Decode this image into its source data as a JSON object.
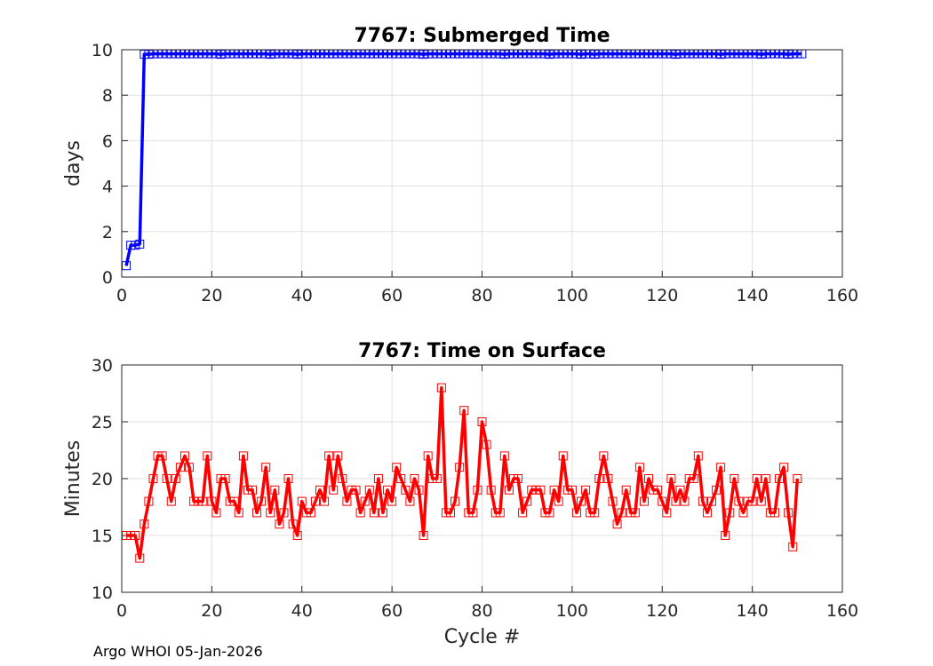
{
  "footer": "Argo WHOI 05-Jan-2026",
  "chart_data": [
    {
      "type": "line",
      "title": "7767: Submerged Time",
      "xlabel": "",
      "ylabel": "days",
      "xlim": [
        0,
        160
      ],
      "ylim": [
        0,
        10
      ],
      "xticks": [
        0,
        20,
        40,
        60,
        80,
        100,
        120,
        140,
        160
      ],
      "yticks": [
        0,
        2,
        4,
        6,
        8,
        10
      ],
      "grid": true,
      "color": "#0000ff",
      "marker": "square",
      "x_start": 1,
      "values": [
        0.5,
        1.4,
        1.4,
        1.45,
        9.8,
        9.8,
        9.82,
        9.82,
        9.82,
        9.82,
        9.82,
        9.82,
        9.82,
        9.82,
        9.82,
        9.82,
        9.82,
        9.82,
        9.82,
        9.82,
        9.82,
        9.8,
        9.82,
        9.82,
        9.82,
        9.82,
        9.82,
        9.82,
        9.82,
        9.82,
        9.82,
        9.82,
        9.8,
        9.82,
        9.82,
        9.82,
        9.82,
        9.82,
        9.8,
        9.82,
        9.82,
        9.82,
        9.82,
        9.82,
        9.82,
        9.82,
        9.82,
        9.82,
        9.82,
        9.82,
        9.82,
        9.82,
        9.82,
        9.82,
        9.82,
        9.82,
        9.82,
        9.82,
        9.82,
        9.82,
        9.82,
        9.82,
        9.82,
        9.82,
        9.82,
        9.82,
        9.8,
        9.82,
        9.82,
        9.82,
        9.82,
        9.82,
        9.82,
        9.82,
        9.82,
        9.82,
        9.82,
        9.82,
        9.82,
        9.82,
        9.82,
        9.82,
        9.82,
        9.82,
        9.8,
        9.82,
        9.82,
        9.82,
        9.82,
        9.82,
        9.82,
        9.82,
        9.82,
        9.82,
        9.8,
        9.82,
        9.82,
        9.82,
        9.82,
        9.82,
        9.82,
        9.8,
        9.82,
        9.82,
        9.8,
        9.82,
        9.82,
        9.82,
        9.82,
        9.82,
        9.82,
        9.82,
        9.82,
        9.82,
        9.82,
        9.82,
        9.82,
        9.82,
        9.82,
        9.82,
        9.82,
        9.82,
        9.8,
        9.82,
        9.82,
        9.82,
        9.82,
        9.82,
        9.82,
        9.82,
        9.82,
        9.82,
        9.8,
        9.82,
        9.82,
        9.82,
        9.82,
        9.82,
        9.82,
        9.82,
        9.82,
        9.8,
        9.82,
        9.82,
        9.82,
        9.82,
        9.82,
        9.8,
        9.82,
        9.82,
        9.82
      ]
    },
    {
      "type": "line",
      "title": "7767: Time on Surface",
      "xlabel": "Cycle #",
      "ylabel": "Minutes",
      "xlim": [
        0,
        160
      ],
      "ylim": [
        10,
        30
      ],
      "xticks": [
        0,
        20,
        40,
        60,
        80,
        100,
        120,
        140,
        160
      ],
      "yticks": [
        10,
        15,
        20,
        25,
        30
      ],
      "grid": true,
      "color": "#ff0000",
      "marker": "square",
      "x_start": 1,
      "values": [
        15,
        15,
        15,
        13,
        16,
        18,
        20,
        22,
        22,
        20,
        18,
        20,
        21,
        22,
        21,
        18,
        18,
        18,
        22,
        18,
        17,
        20,
        20,
        18,
        18,
        17,
        22,
        19,
        19,
        17,
        18,
        21,
        17,
        19,
        16,
        17,
        20,
        16,
        15,
        18,
        17,
        17,
        18,
        19,
        18,
        22,
        19,
        22,
        20,
        18,
        19,
        19,
        17,
        18,
        19,
        17,
        20,
        17,
        19,
        18,
        21,
        20,
        19,
        18,
        20,
        19,
        15,
        22,
        20,
        20,
        28,
        17,
        17,
        18,
        21,
        26,
        17,
        17,
        19,
        25,
        23,
        19,
        17,
        17,
        22,
        19,
        20,
        20,
        17,
        18,
        19,
        19,
        19,
        17,
        17,
        19,
        18,
        22,
        19,
        19,
        17,
        18,
        19,
        17,
        17,
        20,
        22,
        20,
        18,
        16,
        17,
        19,
        17,
        17,
        21,
        18,
        20,
        19,
        19,
        18,
        17,
        20,
        18,
        19,
        18,
        20,
        20,
        22,
        18,
        17,
        18,
        19,
        21,
        15,
        17,
        20,
        18,
        17,
        18,
        18,
        20,
        18,
        20,
        17,
        17,
        20,
        21,
        17,
        14,
        20
      ]
    }
  ]
}
